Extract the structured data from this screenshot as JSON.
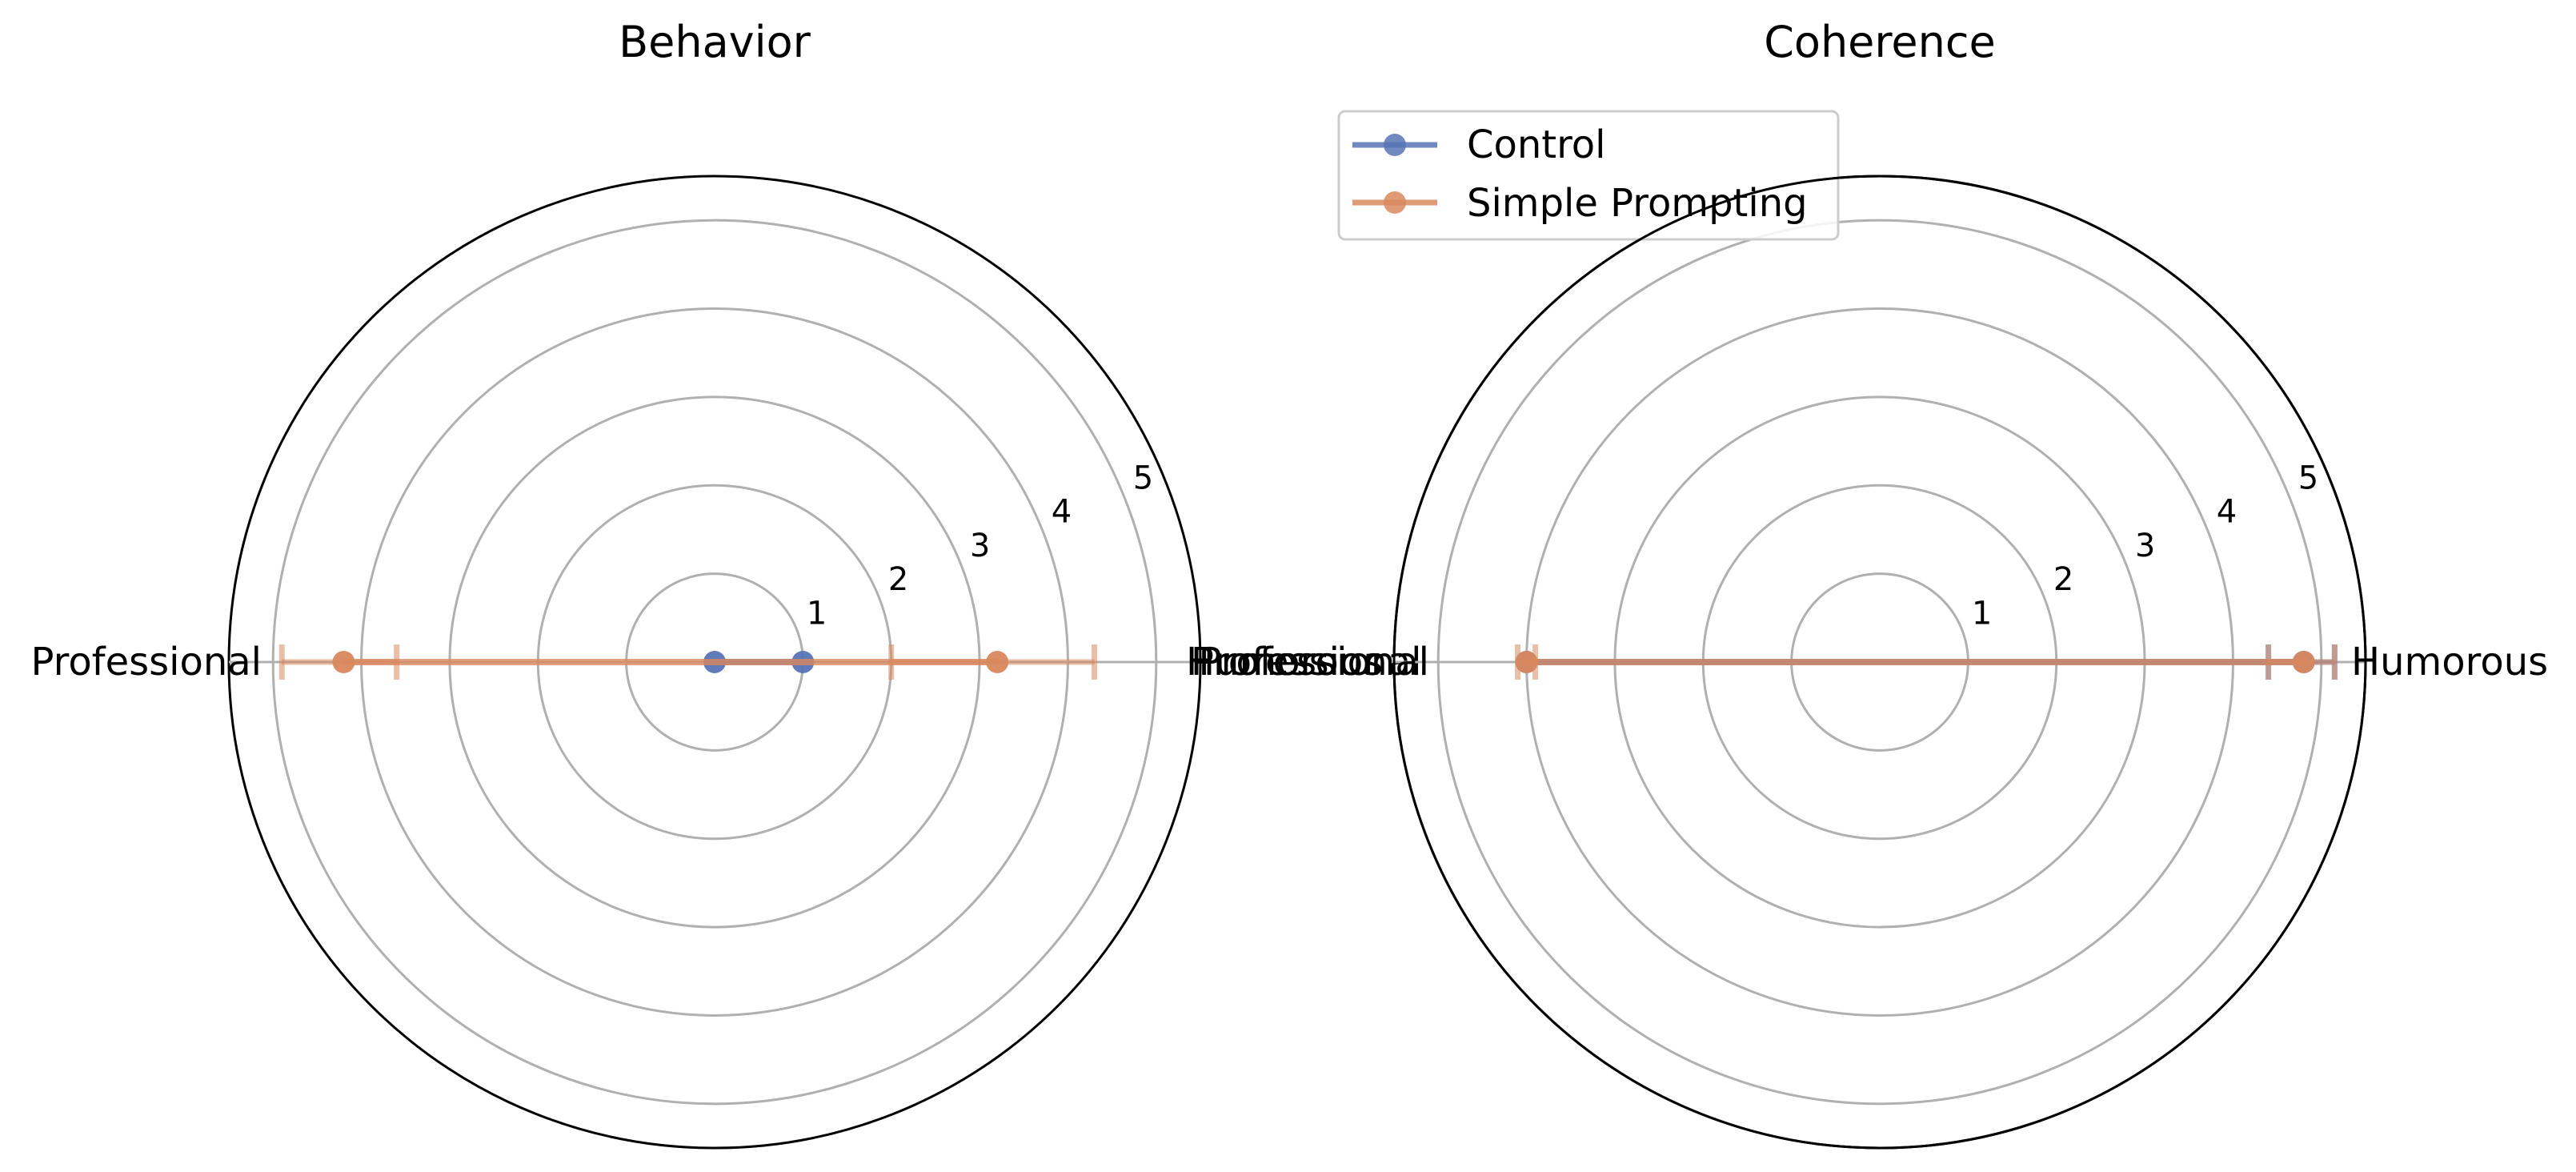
{
  "colors": {
    "control": "#5874b6",
    "simple_prompt": "#d9885e"
  },
  "legend": {
    "items": [
      {
        "label": "Control",
        "series": "control"
      },
      {
        "label": "Simple Prompting",
        "series": "simple_prompt"
      }
    ]
  },
  "chart_data": [
    {
      "type": "radar",
      "title": "Behavior",
      "categories": [
        "Humorous",
        "Professional"
      ],
      "rlim": [
        0,
        5.5
      ],
      "rticks": [
        1,
        2,
        3,
        4,
        5
      ],
      "grid": true,
      "series": [
        {
          "name": "Control",
          "key": "control",
          "values": [
            1.0,
            0.0
          ],
          "errors": [
            null,
            null
          ]
        },
        {
          "name": "Simple Prompting",
          "key": "simple_prompt",
          "values": [
            3.2,
            4.2
          ],
          "errors": [
            [
              2.0,
              4.3
            ],
            [
              3.6,
              4.9
            ]
          ]
        }
      ]
    },
    {
      "type": "radar",
      "title": "Coherence",
      "categories": [
        "Humorous",
        "Professional"
      ],
      "rlim": [
        0,
        5.5
      ],
      "rticks": [
        1,
        2,
        3,
        4,
        5
      ],
      "grid": true,
      "series": [
        {
          "name": "Control",
          "key": "control",
          "values": [
            4.8,
            4.0
          ],
          "errors": [
            [
              4.4,
              5.15
            ],
            null
          ]
        },
        {
          "name": "Simple Prompting",
          "key": "simple_prompt",
          "values": [
            4.8,
            4.0
          ],
          "errors": [
            [
              4.4,
              5.15
            ],
            [
              3.9,
              4.1
            ]
          ]
        }
      ]
    }
  ]
}
